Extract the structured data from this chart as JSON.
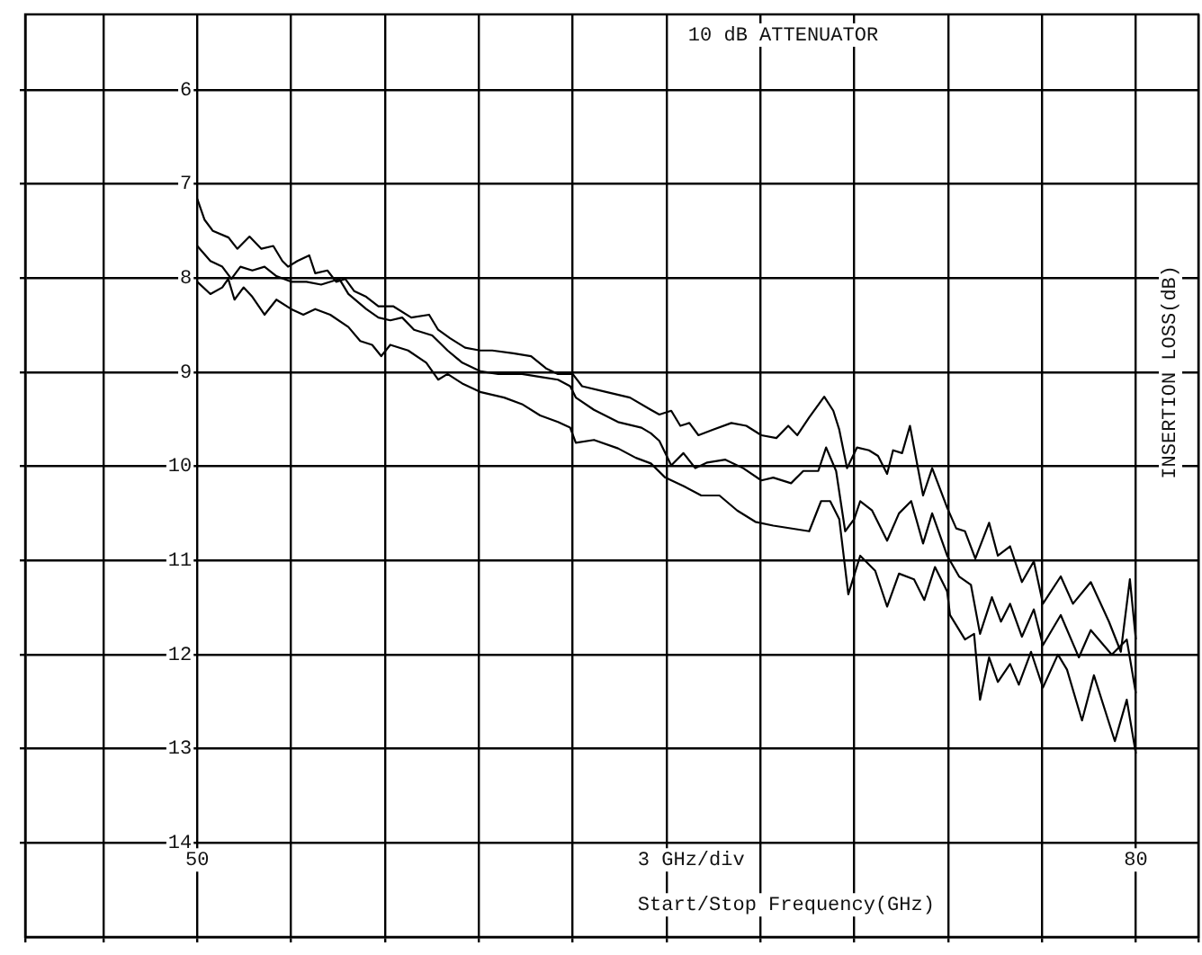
{
  "chart_data": {
    "type": "line",
    "title": "10 dB ATTENUATOR",
    "xlabel": "Start/Stop Frequency(GHz)",
    "ylabel": "INSERTION LOSS(dB)",
    "annotations": [
      "3 GHz/div"
    ],
    "xlim": [
      44.5,
      82
    ],
    "ylim": [
      15,
      5.2
    ],
    "xticks": [
      {
        "value": 44.5,
        "label": null
      },
      {
        "value": 47,
        "label": null
      },
      50,
      {
        "value": 53,
        "label": null
      },
      {
        "value": 56,
        "label": null
      },
      {
        "value": 59,
        "label": null
      },
      {
        "value": 62,
        "label": null
      },
      {
        "value": 65,
        "label": null
      },
      {
        "value": 68,
        "label": null
      },
      {
        "value": 71,
        "label": null
      },
      {
        "value": 74,
        "label": null
      },
      {
        "value": 77,
        "label": null
      },
      80,
      {
        "value": 82,
        "label": null
      }
    ],
    "yticks": [
      6,
      7,
      8,
      9,
      10,
      11,
      12,
      13,
      14
    ],
    "grid": true,
    "legend": false,
    "marker": "none",
    "line_style": "solid",
    "series": [
      {
        "color": "#000000",
        "x": [
          50.0,
          50.23,
          50.5,
          51.0,
          51.28,
          51.67,
          52.05,
          52.43,
          52.72,
          52.9,
          53.2,
          53.58,
          53.77,
          54.16,
          54.44,
          54.73,
          55.02,
          55.4,
          55.79,
          56.26,
          56.84,
          57.41,
          57.7,
          58.08,
          58.56,
          59.04,
          59.43,
          60.1,
          60.67,
          61.15,
          61.53,
          62.0,
          62.3,
          63.07,
          63.83,
          64.5,
          64.77,
          65.15,
          65.44,
          65.73,
          66.02,
          66.49,
          67.07,
          67.55,
          68.03,
          68.51,
          68.89,
          69.18,
          69.56,
          70.04,
          70.33,
          70.52,
          70.77,
          71.09,
          71.47,
          71.76,
          72.05,
          72.24,
          72.53,
          72.78,
          73.2,
          73.49,
          73.97,
          74.26,
          74.54,
          74.87,
          75.31,
          75.59,
          75.98,
          76.36,
          76.74,
          77.03,
          77.6,
          77.99,
          78.56,
          79.14,
          79.52,
          79.81,
          80.0
        ],
        "values": [
          7.16,
          7.38,
          7.5,
          7.57,
          7.69,
          7.56,
          7.69,
          7.66,
          7.82,
          7.88,
          7.82,
          7.76,
          7.95,
          7.92,
          8.04,
          8.01,
          8.14,
          8.2,
          8.3,
          8.3,
          8.42,
          8.39,
          8.55,
          8.64,
          8.74,
          8.77,
          8.77,
          8.8,
          8.83,
          8.96,
          9.02,
          9.02,
          9.15,
          9.21,
          9.27,
          9.4,
          9.45,
          9.41,
          9.57,
          9.54,
          9.67,
          9.61,
          9.54,
          9.57,
          9.67,
          9.7,
          9.57,
          9.67,
          9.48,
          9.26,
          9.41,
          9.61,
          10.02,
          9.8,
          9.83,
          9.89,
          10.08,
          9.83,
          9.86,
          9.57,
          10.31,
          10.02,
          10.44,
          10.66,
          10.69,
          10.98,
          10.6,
          10.95,
          10.85,
          11.23,
          11.01,
          11.46,
          11.17,
          11.46,
          11.23,
          11.65,
          11.97,
          11.2,
          11.84
        ]
      },
      {
        "color": "#000000",
        "x": [
          50.0,
          50.42,
          50.8,
          51.09,
          51.38,
          51.76,
          52.15,
          52.53,
          53.0,
          53.49,
          53.96,
          54.54,
          54.83,
          55.4,
          55.79,
          56.17,
          56.55,
          56.93,
          57.51,
          58.0,
          58.47,
          59.04,
          59.62,
          60.38,
          60.96,
          61.53,
          61.92,
          62.1,
          62.68,
          63.45,
          64.2,
          64.5,
          64.77,
          65.15,
          65.54,
          65.92,
          66.3,
          66.88,
          67.45,
          68.03,
          68.41,
          68.98,
          69.37,
          69.85,
          70.1,
          70.42,
          70.71,
          71.0,
          71.19,
          71.57,
          72.05,
          72.43,
          72.82,
          73.2,
          73.49,
          73.97,
          74.35,
          74.73,
          75.02,
          75.4,
          75.69,
          75.98,
          76.36,
          76.74,
          77.03,
          77.6,
          78.18,
          78.56,
          79.23,
          79.71,
          80.0
        ],
        "values": [
          7.66,
          7.82,
          7.88,
          8.01,
          7.88,
          7.92,
          7.88,
          7.98,
          8.04,
          8.04,
          8.07,
          8.01,
          8.17,
          8.33,
          8.42,
          8.45,
          8.42,
          8.55,
          8.61,
          8.77,
          8.9,
          8.99,
          9.02,
          9.02,
          9.05,
          9.08,
          9.15,
          9.27,
          9.4,
          9.53,
          9.59,
          9.65,
          9.73,
          9.99,
          9.86,
          10.02,
          9.96,
          9.93,
          10.02,
          10.15,
          10.12,
          10.18,
          10.05,
          10.05,
          9.8,
          10.05,
          10.69,
          10.56,
          10.37,
          10.47,
          10.79,
          10.5,
          10.37,
          10.82,
          10.5,
          10.95,
          11.17,
          11.26,
          11.78,
          11.39,
          11.65,
          11.46,
          11.81,
          11.52,
          11.9,
          11.58,
          12.03,
          11.74,
          12.0,
          11.84,
          12.41
        ]
      },
      {
        "color": "#000000",
        "x": [
          50.0,
          50.42,
          50.8,
          50.99,
          51.19,
          51.48,
          51.76,
          52.15,
          52.53,
          53.0,
          53.39,
          53.77,
          54.25,
          54.83,
          55.21,
          55.59,
          55.88,
          56.17,
          56.74,
          57.32,
          57.7,
          58.0,
          58.47,
          59.04,
          59.81,
          60.38,
          60.96,
          61.53,
          61.92,
          62.1,
          62.68,
          63.45,
          64.02,
          64.5,
          64.96,
          65.54,
          66.11,
          66.69,
          67.26,
          67.84,
          68.41,
          69.56,
          69.94,
          70.23,
          70.52,
          70.81,
          71.19,
          71.67,
          72.05,
          72.43,
          72.91,
          73.24,
          73.58,
          73.97,
          74.06,
          74.54,
          74.83,
          75.02,
          75.31,
          75.59,
          75.98,
          76.26,
          76.65,
          77.03,
          77.51,
          77.8,
          78.28,
          78.66,
          79.33,
          79.71,
          80.0
        ],
        "values": [
          8.04,
          8.17,
          8.1,
          8.01,
          8.23,
          8.1,
          8.2,
          8.39,
          8.23,
          8.33,
          8.39,
          8.33,
          8.39,
          8.52,
          8.67,
          8.71,
          8.83,
          8.71,
          8.77,
          8.9,
          9.08,
          9.02,
          9.12,
          9.21,
          9.27,
          9.34,
          9.46,
          9.53,
          9.59,
          9.75,
          9.72,
          9.81,
          9.91,
          9.97,
          10.12,
          10.21,
          10.31,
          10.31,
          10.47,
          10.59,
          10.63,
          10.69,
          10.37,
          10.37,
          10.56,
          11.36,
          10.95,
          11.11,
          11.49,
          11.14,
          11.2,
          11.42,
          11.07,
          11.33,
          11.58,
          11.84,
          11.78,
          12.48,
          12.03,
          12.29,
          12.1,
          12.32,
          11.97,
          12.35,
          12.0,
          12.16,
          12.7,
          12.22,
          12.92,
          12.48,
          13.05
        ]
      }
    ]
  }
}
